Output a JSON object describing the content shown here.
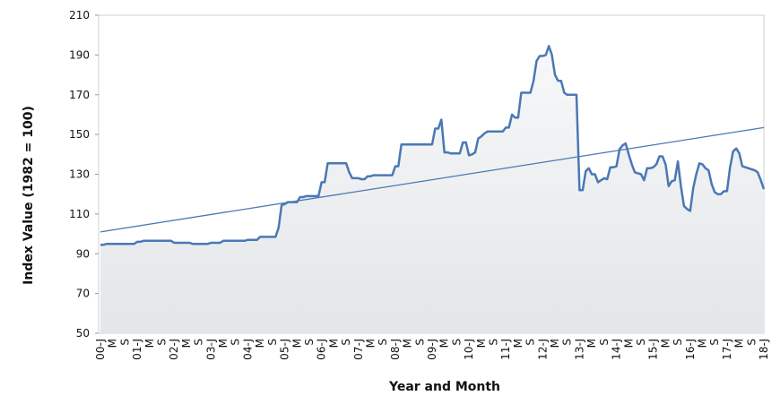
{
  "chart_data": {
    "type": "line",
    "y_label": "Index Value (1982 = 100)",
    "x_label": "Year and Month",
    "categories": [
      "00-J",
      null,
      null,
      null,
      "M",
      null,
      null,
      null,
      "S",
      null,
      null,
      null,
      "01-J",
      null,
      null,
      null,
      "M",
      null,
      null,
      null,
      "S",
      null,
      null,
      null,
      "02-J",
      null,
      null,
      null,
      "M",
      null,
      null,
      null,
      "S",
      null,
      null,
      null,
      "03-J",
      null,
      null,
      null,
      "M",
      null,
      null,
      null,
      "S",
      null,
      null,
      null,
      "04-J",
      null,
      null,
      null,
      "M",
      null,
      null,
      null,
      "S",
      null,
      null,
      null,
      "05-J",
      null,
      null,
      null,
      "M",
      null,
      null,
      null,
      "S",
      null,
      null,
      null,
      "06-J",
      null,
      null,
      null,
      "M",
      null,
      null,
      null,
      "S",
      null,
      null,
      null,
      "07-J",
      null,
      null,
      null,
      "M",
      null,
      null,
      null,
      "S",
      null,
      null,
      null,
      "08-J",
      null,
      null,
      null,
      "M",
      null,
      null,
      null,
      "S",
      null,
      null,
      null,
      "09-J",
      null,
      null,
      null,
      "M",
      null,
      null,
      null,
      "S",
      null,
      null,
      null,
      "10-J",
      null,
      null,
      null,
      "M",
      null,
      null,
      null,
      "S",
      null,
      null,
      null,
      "11-J",
      null,
      null,
      null,
      "M",
      null,
      null,
      null,
      "S",
      null,
      null,
      null,
      "12-J",
      null,
      null,
      null,
      "M",
      null,
      null,
      null,
      "S",
      null,
      null,
      null,
      "13-J",
      null,
      null,
      null,
      "M",
      null,
      null,
      null,
      "S",
      null,
      null,
      null,
      "14-J",
      null,
      null,
      null,
      "M",
      null,
      null,
      null,
      "S",
      null,
      null,
      null,
      "15-J",
      null,
      null,
      null,
      "M",
      null,
      null,
      null,
      "S",
      null,
      null,
      null,
      "16-J",
      null,
      null,
      null,
      "M",
      null,
      null,
      null,
      "S",
      null,
      null,
      null,
      "17-J",
      null,
      null,
      null,
      "M",
      null,
      null,
      null,
      "S",
      null,
      null,
      null,
      "18-J"
    ],
    "series": [
      {
        "color": "#4a78b5",
        "values": [
          94.5,
          94.5,
          95,
          95,
          95,
          95,
          95,
          95,
          95,
          95,
          95,
          95,
          96,
          96,
          96.5,
          96.5,
          96.5,
          96.5,
          96.5,
          96.5,
          96.5,
          96.5,
          96.5,
          96.5,
          95.5,
          95.5,
          95.5,
          95.5,
          95.5,
          95.5,
          95,
          95,
          95,
          95,
          95,
          95,
          95.5,
          95.5,
          95.5,
          95.5,
          96.5,
          96.5,
          96.5,
          96.5,
          96.5,
          96.5,
          96.5,
          96.5,
          97,
          97,
          97,
          97,
          98.5,
          98.5,
          98.5,
          98.5,
          98.5,
          98.5,
          103,
          114.5,
          115,
          116,
          116,
          116,
          116,
          118.5,
          118.5,
          119,
          119,
          119,
          119,
          119,
          126,
          126,
          135.5,
          135.5,
          135.5,
          135.5,
          135.5,
          135.5,
          135.5,
          131,
          128,
          128,
          128,
          127.5,
          127.5,
          129,
          129,
          129.5,
          129.5,
          129.5,
          129.5,
          129.5,
          129.5,
          129.5,
          134,
          134,
          145,
          145,
          145,
          145,
          145,
          145,
          145,
          145,
          145,
          145,
          145,
          153,
          153,
          157.5,
          141,
          141,
          140.5,
          140.5,
          140.5,
          140.5,
          146,
          146,
          139.5,
          140,
          141,
          148,
          149,
          150.5,
          151.5,
          151.5,
          151.5,
          151.5,
          151.5,
          151.5,
          153.5,
          153.5,
          160,
          158.5,
          158.5,
          171,
          171,
          171,
          171,
          177,
          187,
          189.5,
          189.5,
          190,
          194.5,
          190,
          180,
          177,
          177,
          171,
          170,
          170,
          170,
          170,
          122,
          122,
          131.5,
          133,
          130,
          130,
          126,
          127,
          128,
          127.5,
          133.5,
          133.5,
          134,
          142.5,
          144.5,
          145.5,
          140,
          135,
          131,
          130.5,
          130,
          127,
          133,
          133,
          133.5,
          135,
          139,
          139,
          135,
          124,
          126.5,
          127,
          136.5,
          124,
          114,
          112.5,
          111.5,
          123,
          130,
          135.5,
          135,
          133,
          132,
          125,
          121,
          120,
          120,
          121.5,
          121.5,
          133.5,
          141.5,
          143,
          140.5,
          134,
          133.5,
          133,
          132.5,
          132,
          131,
          127,
          122.5
        ]
      }
    ],
    "trend": {
      "color": "#4a78b5",
      "values": [
        101,
        153.5
      ]
    },
    "ylim": [
      50,
      210
    ],
    "yticks": [
      50,
      70,
      90,
      110,
      130,
      150,
      170,
      190,
      210
    ],
    "area": true
  }
}
